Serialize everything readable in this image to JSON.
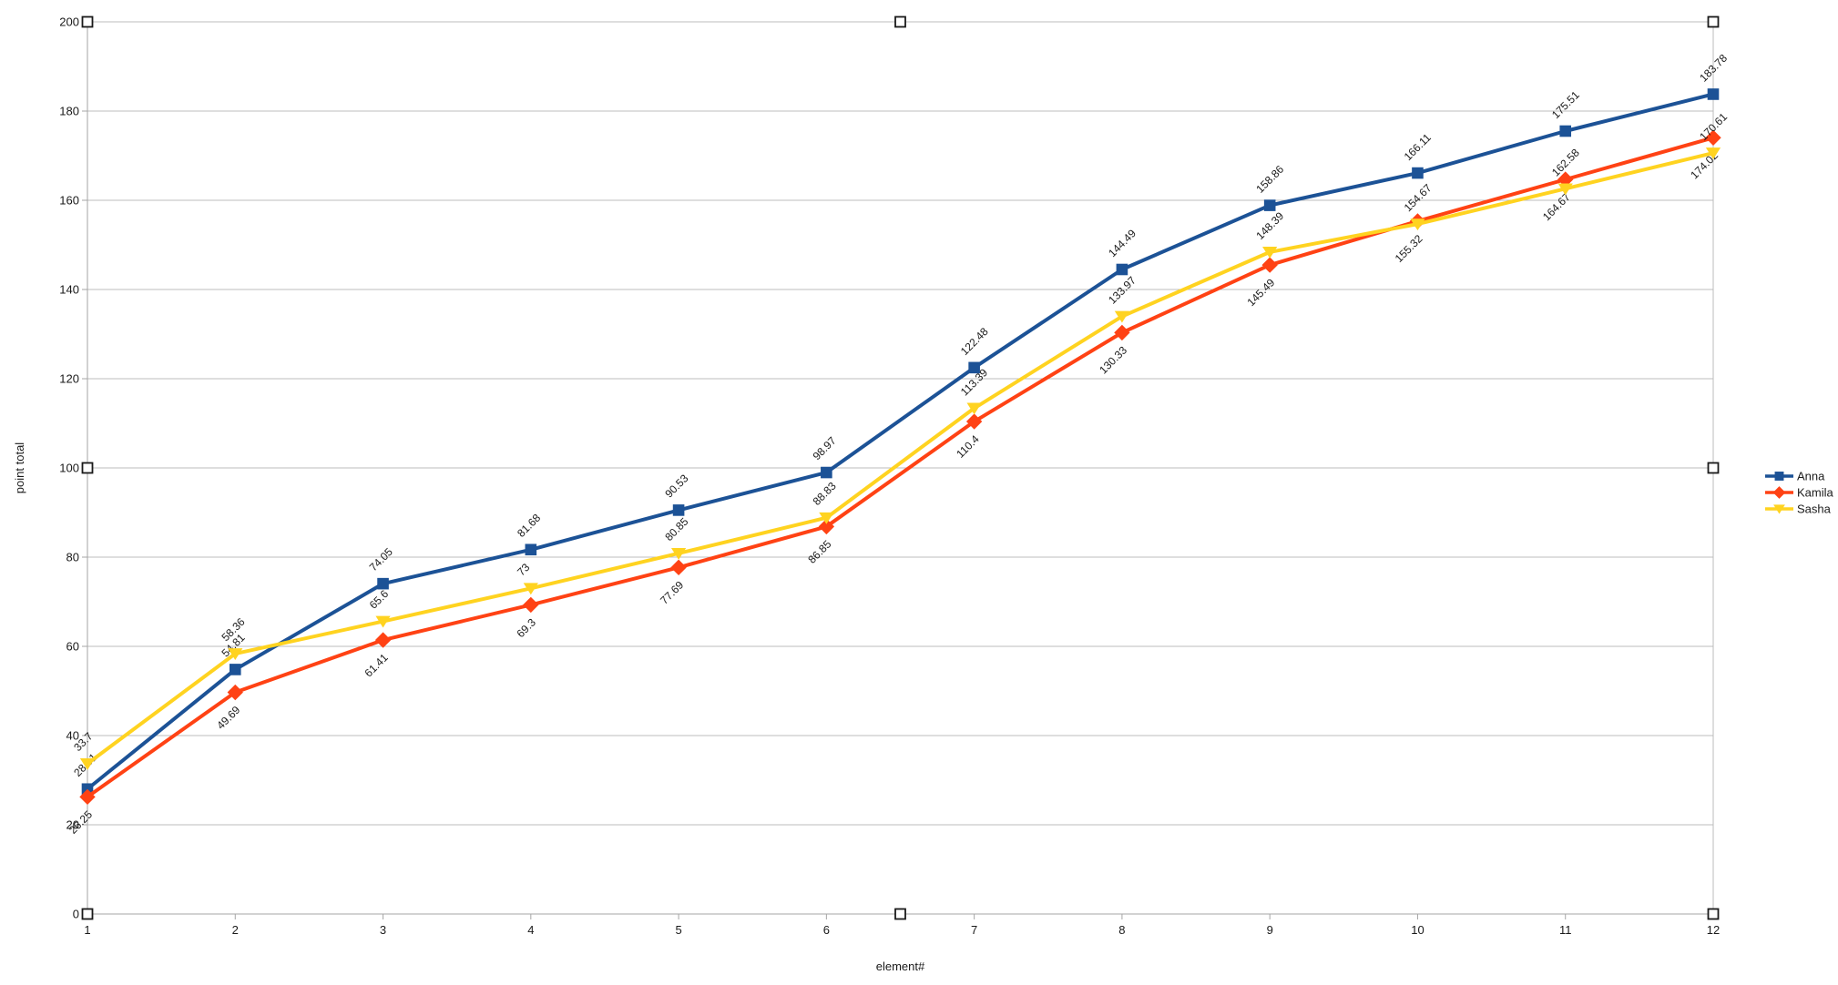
{
  "chart_data": {
    "type": "line",
    "title": "",
    "xlabel": "element#",
    "ylabel": "point total",
    "x": [
      1,
      2,
      3,
      4,
      5,
      6,
      7,
      8,
      9,
      10,
      11,
      12
    ],
    "x_tick_labels": [
      "1",
      "2",
      "3",
      "4",
      "5",
      "6",
      "7",
      "8",
      "9",
      "10",
      "11",
      "12"
    ],
    "ylim": [
      0,
      200
    ],
    "ytick_interval": 20,
    "y_tick_labels": [
      "0",
      "20",
      "40",
      "60",
      "80",
      "100",
      "120",
      "140",
      "160",
      "180",
      "200"
    ],
    "grid": "horizontal",
    "legend_position": "right",
    "series": [
      {
        "name": "Anna",
        "color": "#1C5296",
        "marker": "square",
        "label_position": "above",
        "values": [
          28.01,
          54.81,
          74.05,
          81.68,
          90.53,
          98.97,
          122.48,
          144.49,
          158.86,
          166.11,
          175.51,
          183.78
        ],
        "labels": [
          "28.01",
          "54.81",
          "74.05",
          "81.68",
          "90.53",
          "98.97",
          "122.48",
          "144.49",
          "158.86",
          "166.11",
          "175.51",
          "183.78"
        ]
      },
      {
        "name": "Kamila",
        "color": "#FF4214",
        "marker": "diamond",
        "label_position": "below",
        "values": [
          26.25,
          49.69,
          61.41,
          69.3,
          77.69,
          86.85,
          110.4,
          130.33,
          145.49,
          155.32,
          164.67,
          174.02
        ],
        "labels": [
          "26.25",
          "49.69",
          "61.41",
          "69.3",
          "77.69",
          "86.85",
          "110.4",
          "130.33",
          "145.49",
          "155.32",
          "164.67",
          "174.02"
        ]
      },
      {
        "name": "Sasha",
        "color": "#FFD320",
        "marker": "triangle-down",
        "label_position": "above",
        "values": [
          33.7,
          58.36,
          65.6,
          73,
          80.85,
          88.83,
          113.39,
          133.97,
          148.39,
          154.67,
          162.58,
          170.61
        ],
        "labels": [
          "33.7",
          "58.36",
          "65.6",
          "73",
          "80.85",
          "88.83",
          "113.39",
          "133.97",
          "148.39",
          "154.67",
          "162.58",
          "170.61"
        ]
      }
    ]
  },
  "selection": {
    "object_selected": true,
    "handle_style": "white-square-black-border",
    "handle_positions": "plot area corners and edge midpoints"
  },
  "colors": {
    "background": "#ffffff",
    "gridline": "#bcbcbc",
    "axis_line": "#a6a6a6",
    "text": "#1a1a1a"
  }
}
